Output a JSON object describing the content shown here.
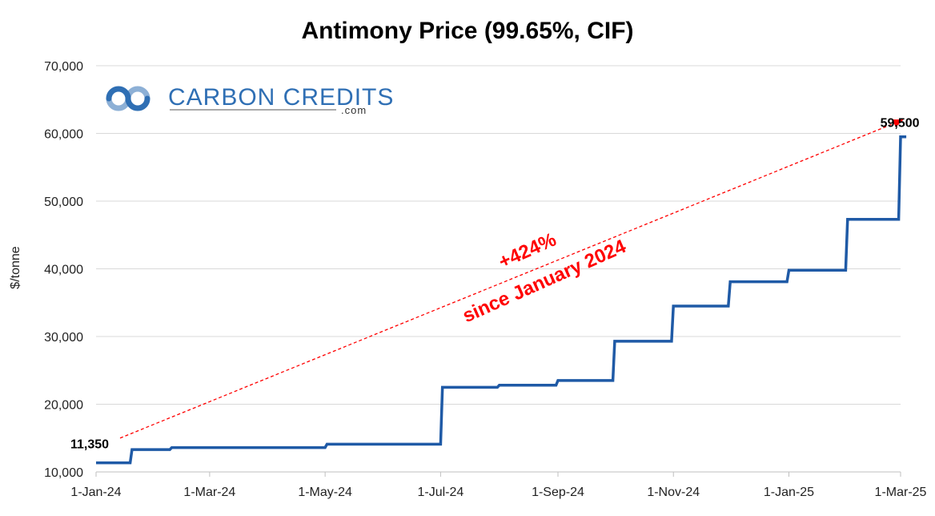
{
  "chart_data": {
    "type": "line",
    "title": "Antimony Price (99.65%, CIF)",
    "ylabel": "$/tonne",
    "xlabel": "",
    "ylim": [
      10000,
      70000
    ],
    "yticks": [
      10000,
      20000,
      30000,
      40000,
      50000,
      60000,
      70000
    ],
    "ytick_labels": [
      "10,000",
      "20,000",
      "30,000",
      "40,000",
      "50,000",
      "60,000",
      "70,000"
    ],
    "xlim": [
      "2024-01-01",
      "2025-03-01"
    ],
    "xticks": [
      "2024-01-01",
      "2024-03-01",
      "2024-05-01",
      "2024-07-01",
      "2024-09-01",
      "2024-11-01",
      "2025-01-01",
      "2025-03-01"
    ],
    "xtick_labels": [
      "1-Jan-24",
      "1-Mar-24",
      "1-May-24",
      "1-Jul-24",
      "1-Sep-24",
      "1-Nov-24",
      "1-Jan-25",
      "1-Mar-25"
    ],
    "grid": "horizontal",
    "series": [
      {
        "color": "#1f5aa6",
        "step": true,
        "points": [
          [
            "2024-01-01",
            11350
          ],
          [
            "2024-01-19",
            11350
          ],
          [
            "2024-01-20",
            13300
          ],
          [
            "2024-02-09",
            13300
          ],
          [
            "2024-02-10",
            13600
          ],
          [
            "2024-05-01",
            13600
          ],
          [
            "2024-05-02",
            14100
          ],
          [
            "2024-07-01",
            14100
          ],
          [
            "2024-07-02",
            22500
          ],
          [
            "2024-07-31",
            22500
          ],
          [
            "2024-08-01",
            22800
          ],
          [
            "2024-08-31",
            22800
          ],
          [
            "2024-09-01",
            23500
          ],
          [
            "2024-09-30",
            23500
          ],
          [
            "2024-10-01",
            29300
          ],
          [
            "2024-10-31",
            29300
          ],
          [
            "2024-11-01",
            34500
          ],
          [
            "2024-11-30",
            34500
          ],
          [
            "2024-12-01",
            38100
          ],
          [
            "2024-12-31",
            38100
          ],
          [
            "2025-01-01",
            39800
          ],
          [
            "2025-01-31",
            39800
          ],
          [
            "2025-02-01",
            47300
          ],
          [
            "2025-02-28",
            47300
          ],
          [
            "2025-03-01",
            59500
          ],
          [
            "2025-03-04",
            59500
          ]
        ]
      }
    ],
    "data_labels": [
      {
        "text": "11,350",
        "x": "2024-01-01",
        "y": 11350
      },
      {
        "text": "59,500",
        "x": "2025-03-04",
        "y": 59500
      }
    ],
    "annotations": [
      {
        "text": "+424%",
        "color": "#ff0000"
      },
      {
        "text": "since January 2024",
        "color": "#ff0000"
      }
    ],
    "trend_arrow": {
      "from": [
        "2024-01-01",
        15000
      ],
      "to": [
        "2025-02-28",
        62000
      ],
      "color": "#ff0000",
      "style": "dashed"
    }
  },
  "logo": {
    "name": "CARBON CREDITS",
    "suffix": ".com",
    "color": "#2f6fb4"
  }
}
